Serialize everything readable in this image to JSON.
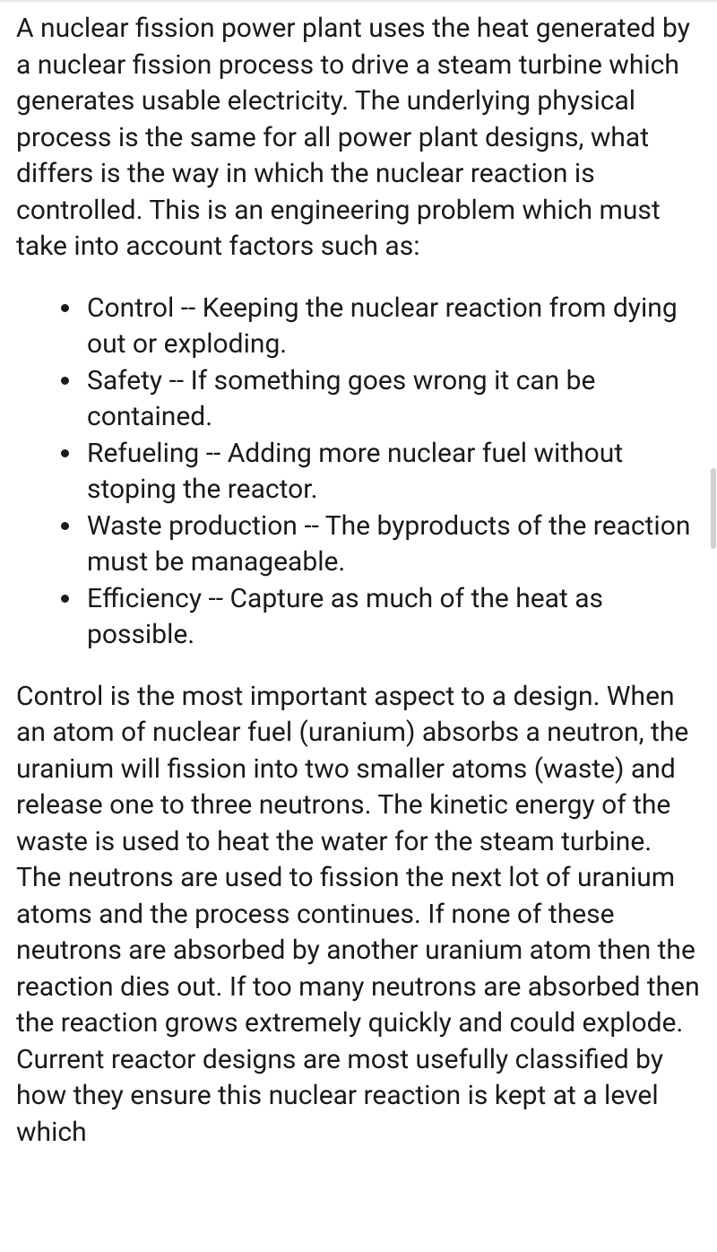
{
  "colors": {
    "text": "#1a1a1a",
    "background": "#ffffff",
    "divider": "#e8e8e8",
    "scrollbar": "#d0d0d0"
  },
  "typography": {
    "body_fontsize": 30,
    "line_height": 1.35
  },
  "paragraphs": {
    "intro": "A nuclear fission power plant uses the heat generated by a nuclear fission process to drive a steam turbine which generates usable electricity. The underlying physical process is the same for all power plant designs, what differs is the way in which the nuclear reaction is controlled. This is an engineering problem which must take into account factors such as:",
    "outro": "Control is the most important aspect to a design. When an atom of nuclear fuel (uranium) absorbs a neutron, the uranium will fission into two smaller atoms (waste) and release one to three neutrons. The kinetic energy of the waste is used to heat the water for the steam turbine. The neutrons are used to fission the next lot of uranium atoms and the process continues. If none of these neutrons are absorbed by another uranium atom then the reaction dies out. If too many neutrons are absorbed then the reaction grows extremely quickly and could explode. Current reactor designs are most usefully classified by how they ensure this nuclear reaction is kept at a level which"
  },
  "bullets": [
    "Control -- Keeping the nuclear reaction from dying out or exploding.",
    "Safety -- If something goes wrong it can be contained.",
    "Refueling -- Adding more nuclear fuel without stoping the reactor.",
    "Waste production -- The byproducts of the reaction must be manageable.",
    "Efficiency -- Capture as much of the heat as possible."
  ]
}
